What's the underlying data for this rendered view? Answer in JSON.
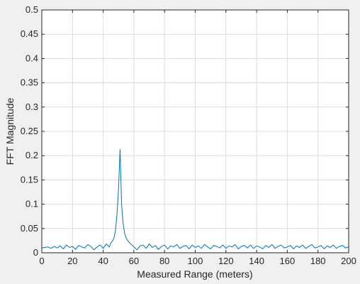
{
  "chart_data": {
    "type": "line",
    "title": "",
    "xlabel": "Measured Range (meters)",
    "ylabel": "FFT Magnitude",
    "xlim": [
      0,
      200
    ],
    "ylim": [
      0,
      0.5
    ],
    "xticks": [
      0,
      20,
      40,
      60,
      80,
      100,
      120,
      140,
      160,
      180,
      200
    ],
    "yticks": [
      0,
      0.05,
      0.1,
      0.15,
      0.2,
      0.25,
      0.3,
      0.35,
      0.4,
      0.45,
      0.5
    ],
    "xtick_labels": [
      "0",
      "20",
      "40",
      "60",
      "80",
      "100",
      "120",
      "140",
      "160",
      "180",
      "200"
    ],
    "ytick_labels": [
      "0",
      "0.05",
      "0.1",
      "0.15",
      "0.2",
      "0.25",
      "0.3",
      "0.35",
      "0.4",
      "0.45",
      "0.5"
    ],
    "grid": true,
    "legend": "none",
    "series": [
      {
        "color": "#0072bd",
        "x": [
          0,
          2,
          4,
          6,
          8,
          10,
          12,
          14,
          16,
          18,
          20,
          22,
          24,
          26,
          28,
          30,
          32,
          34,
          36,
          38,
          40,
          42,
          44,
          45,
          46,
          47,
          48,
          49,
          50,
          51,
          52,
          53,
          54,
          55,
          56,
          58,
          60,
          62,
          64,
          66,
          68,
          70,
          72,
          74,
          76,
          78,
          80,
          82,
          84,
          86,
          88,
          90,
          92,
          94,
          96,
          98,
          100,
          102,
          104,
          106,
          108,
          110,
          112,
          114,
          116,
          118,
          120,
          122,
          124,
          126,
          128,
          130,
          132,
          134,
          136,
          138,
          140,
          142,
          144,
          146,
          148,
          150,
          152,
          154,
          156,
          158,
          160,
          162,
          164,
          166,
          168,
          170,
          172,
          174,
          176,
          178,
          180,
          182,
          184,
          186,
          188,
          190,
          192,
          194,
          196,
          198,
          200
        ],
        "y": [
          0.01,
          0.011,
          0.012,
          0.009,
          0.013,
          0.01,
          0.014,
          0.008,
          0.016,
          0.011,
          0.013,
          0.007,
          0.015,
          0.012,
          0.01,
          0.017,
          0.013,
          0.006,
          0.012,
          0.016,
          0.009,
          0.018,
          0.012,
          0.02,
          0.024,
          0.03,
          0.045,
          0.08,
          0.13,
          0.213,
          0.1,
          0.06,
          0.04,
          0.03,
          0.025,
          0.018,
          0.012,
          0.006,
          0.014,
          0.016,
          0.009,
          0.018,
          0.011,
          0.015,
          0.007,
          0.013,
          0.016,
          0.008,
          0.014,
          0.012,
          0.017,
          0.009,
          0.013,
          0.015,
          0.008,
          0.016,
          0.011,
          0.014,
          0.009,
          0.017,
          0.012,
          0.008,
          0.015,
          0.013,
          0.01,
          0.016,
          0.009,
          0.014,
          0.012,
          0.017,
          0.008,
          0.013,
          0.015,
          0.01,
          0.016,
          0.009,
          0.014,
          0.012,
          0.008,
          0.015,
          0.011,
          0.017,
          0.009,
          0.013,
          0.016,
          0.01,
          0.012,
          0.015,
          0.008,
          0.014,
          0.011,
          0.016,
          0.009,
          0.013,
          0.017,
          0.01,
          0.012,
          0.015,
          0.008,
          0.014,
          0.011,
          0.016,
          0.009,
          0.013,
          0.015,
          0.01,
          0.012
        ]
      }
    ]
  }
}
